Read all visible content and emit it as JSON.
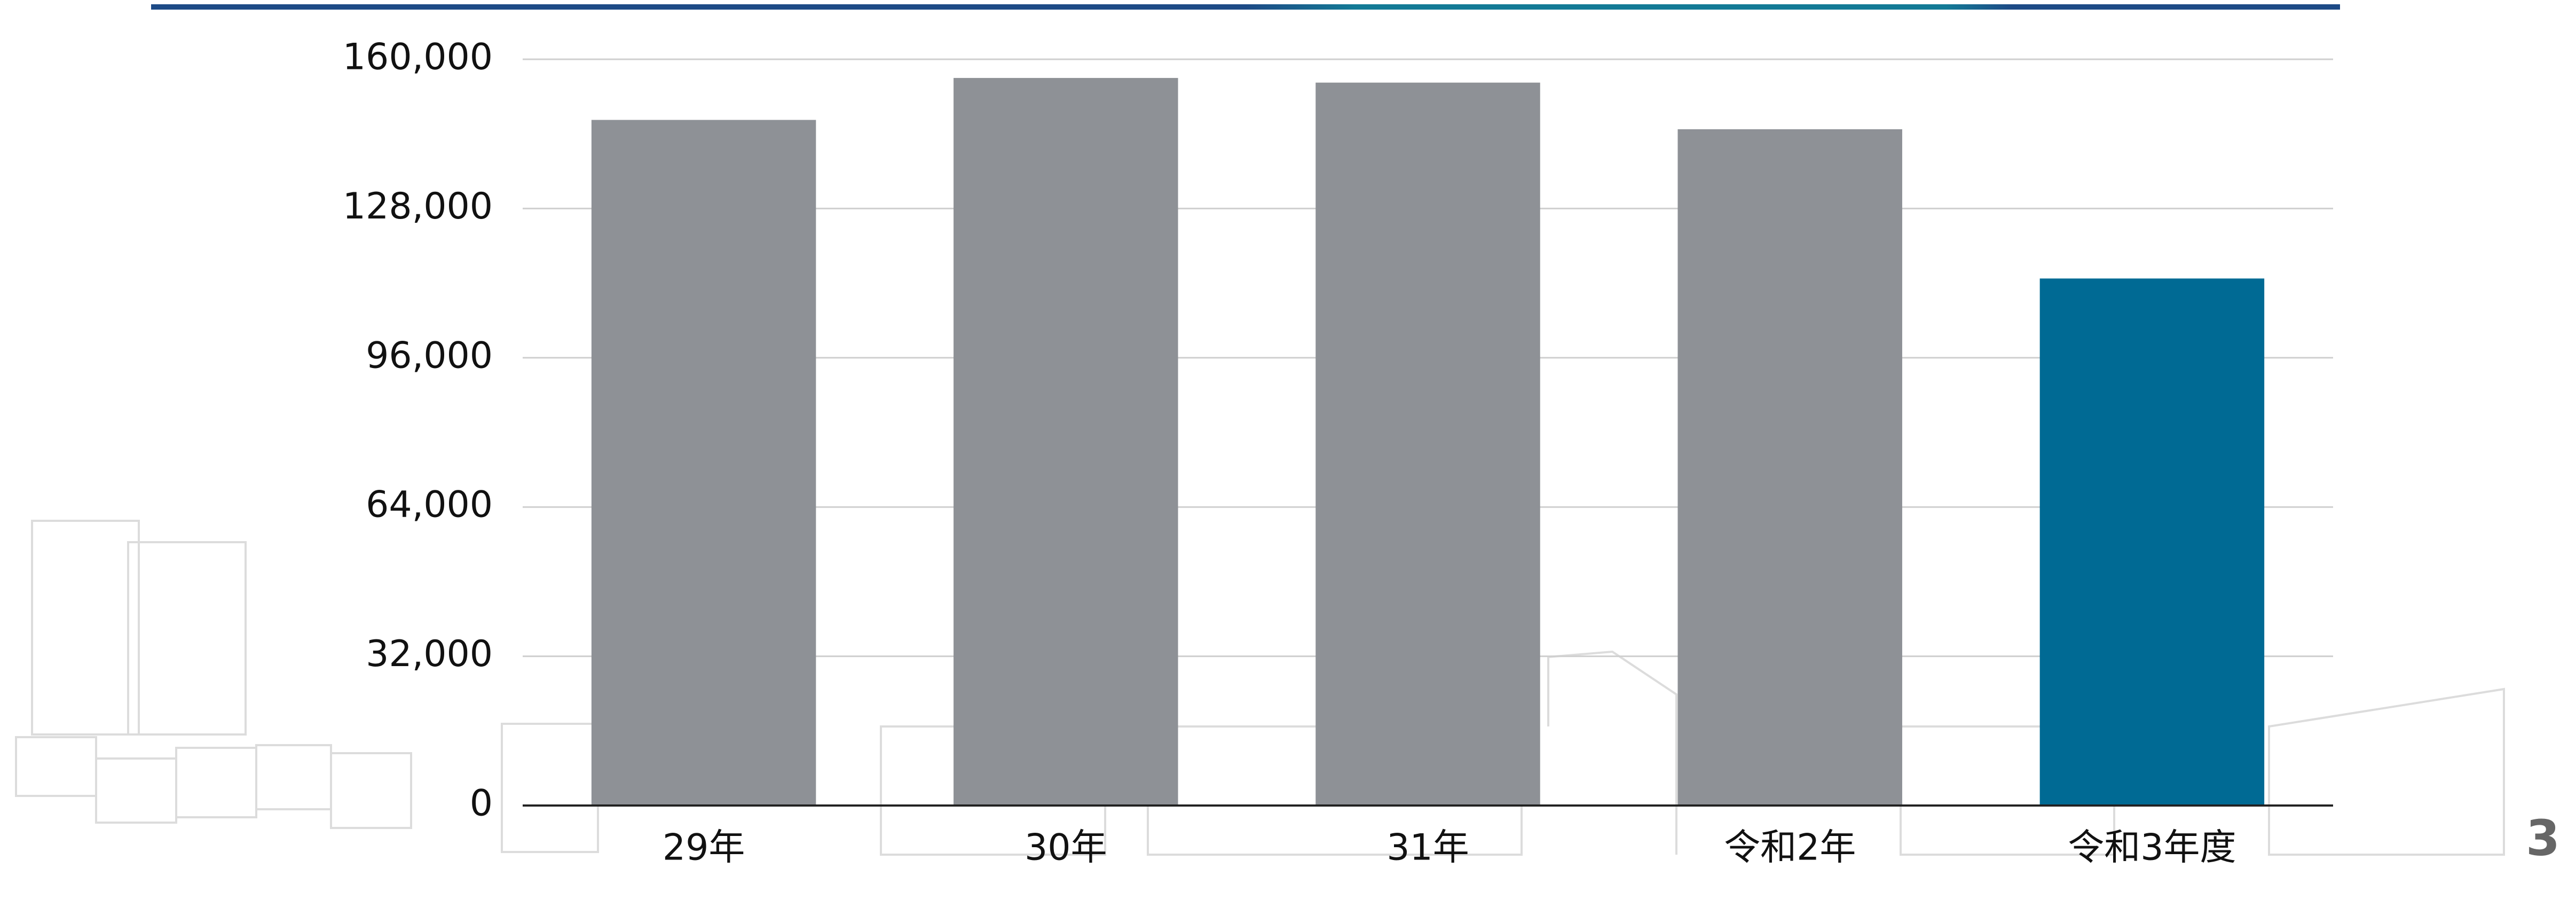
{
  "chart_data": {
    "type": "bar",
    "categories": [
      "29年",
      "30年",
      "31年",
      "令和2年",
      "令和3年度"
    ],
    "values": [
      147000,
      156000,
      155000,
      145000,
      113000
    ],
    "colors": [
      "#8e9196",
      "#8e9196",
      "#8e9196",
      "#8e9196",
      "#006a94"
    ],
    "ylim": [
      0,
      160000
    ],
    "yticks": [
      {
        "value": 0,
        "label": "0"
      },
      {
        "value": 32000,
        "label": "32,000"
      },
      {
        "value": 64000,
        "label": "64,000"
      },
      {
        "value": 96000,
        "label": "96,000"
      },
      {
        "value": 128000,
        "label": "128,000"
      },
      {
        "value": 160000,
        "label": "160,000"
      }
    ],
    "grid": true
  },
  "page_number": "3"
}
